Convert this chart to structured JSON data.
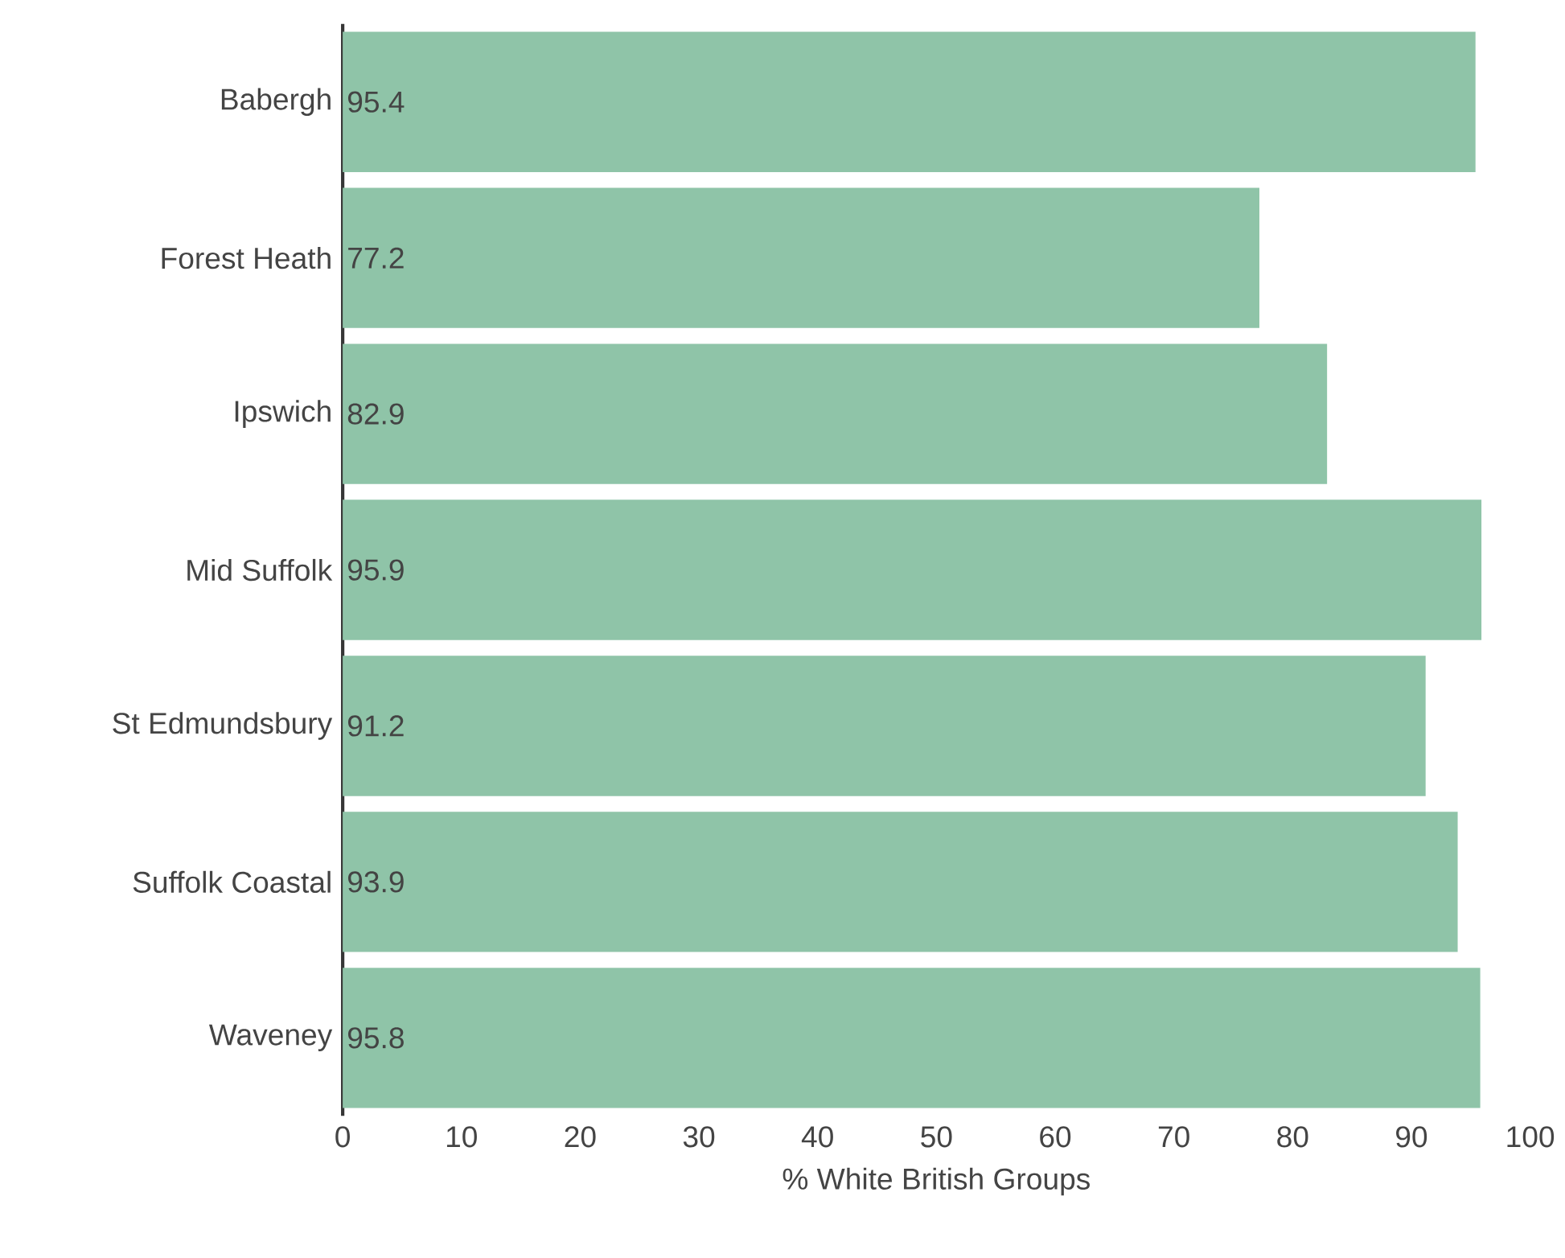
{
  "chart_data": {
    "type": "bar",
    "orientation": "horizontal",
    "xlabel": "% White British Groups",
    "categories": [
      "Babergh",
      "Forest Heath",
      "Ipswich",
      "Mid Suffolk",
      "St Edmundsbury",
      "Suffolk Coastal",
      "Waveney"
    ],
    "values": [
      95.4,
      77.2,
      82.9,
      95.9,
      91.2,
      93.9,
      95.8
    ],
    "color": "#8fc4a8",
    "xlim": [
      0,
      100
    ],
    "xticks": [
      0,
      10,
      20,
      30,
      40,
      50,
      60,
      70,
      80,
      90,
      100
    ],
    "data_labels": true
  }
}
